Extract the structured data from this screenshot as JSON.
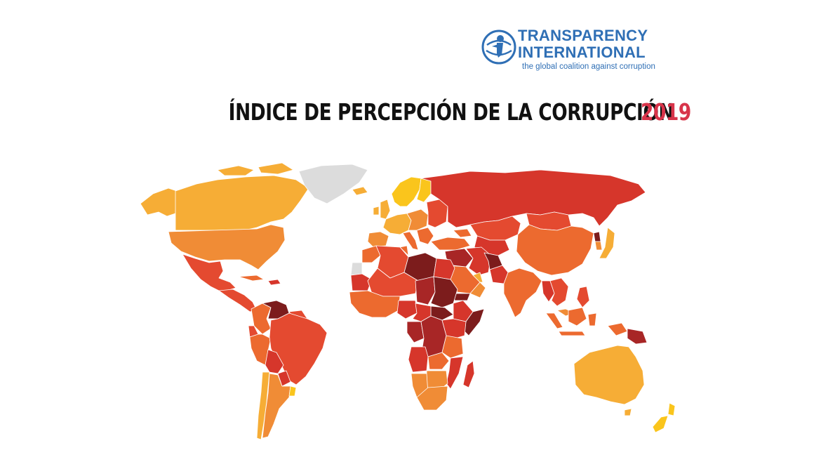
{
  "logo": {
    "line1": "TRANSPARENCY",
    "line2": "INTERNATIONAL",
    "tagline": "the global coalition against corruption",
    "icon": "globe-person-icon",
    "color": "#2f6fb5"
  },
  "title": {
    "main": "ÍNDICE DE PERCEPCIÓN DE LA CORRUPCIÓN",
    "year": "2019"
  },
  "colors": {
    "title_text": "#111111",
    "year_accent": "#d8344a",
    "score_very_high": "#fac51c",
    "score_high": "#f6ad36",
    "score_mid_high": "#f08c36",
    "score_mid": "#ec6a2f",
    "score_mid_low": "#e44a30",
    "score_low": "#d6362b",
    "score_very_low": "#a82626",
    "score_lowest": "#7c1c1c",
    "no_data": "#dcdcdc"
  }
}
